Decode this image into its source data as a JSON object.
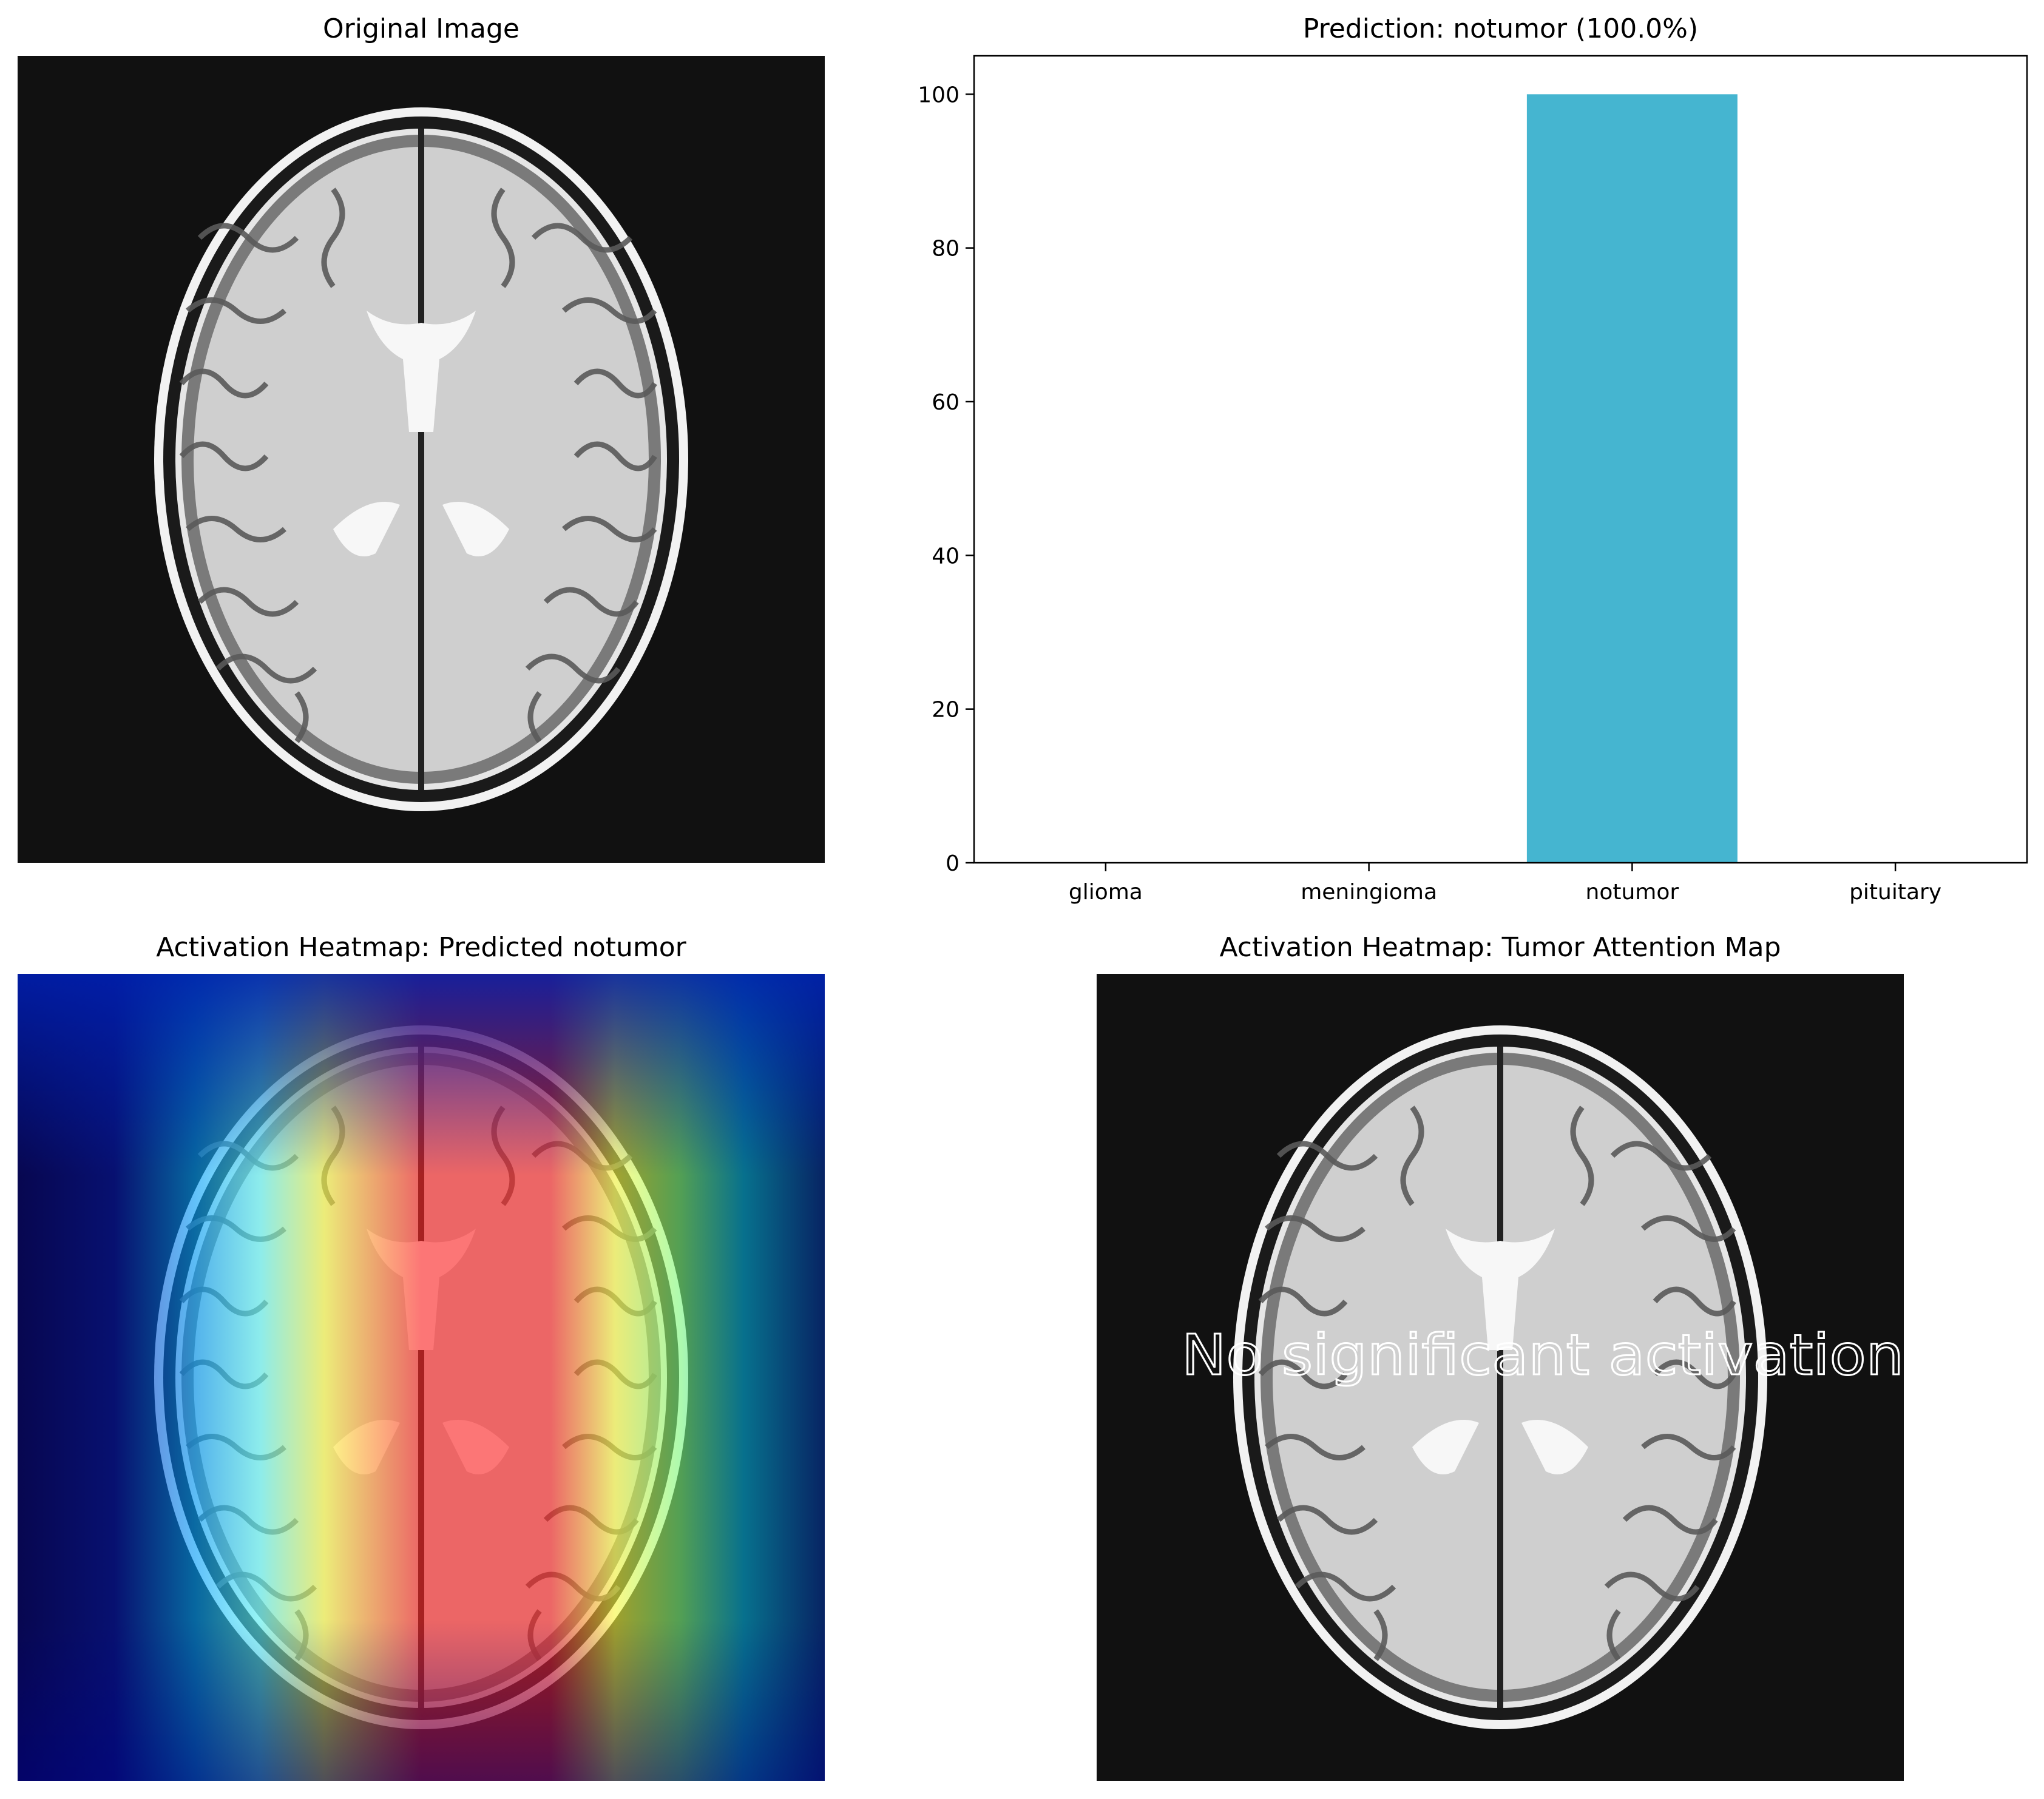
{
  "panels": {
    "original": {
      "title": "Original Image"
    },
    "prediction": {
      "title": "Prediction: notumor (100.0%)"
    },
    "heatmap_pred": {
      "title": "Activation Heatmap: Predicted notumor"
    },
    "heatmap_tumor": {
      "title": "Activation Heatmap: Tumor Attention Map",
      "overlay_text": "No significant activation"
    }
  },
  "chart_data": {
    "type": "bar",
    "title": "Prediction: notumor (100.0%)",
    "categories": [
      "glioma",
      "meningioma",
      "notumor",
      "pituitary"
    ],
    "values": [
      0.0,
      0.0,
      100.0,
      0.0
    ],
    "ylim": [
      0,
      105
    ],
    "yticks": [
      0,
      20,
      40,
      60,
      80,
      100
    ],
    "bar_color": "#45b5d0",
    "grid": false
  },
  "colors": {
    "image_bg": "#111111",
    "bar": "#45b5d0"
  }
}
